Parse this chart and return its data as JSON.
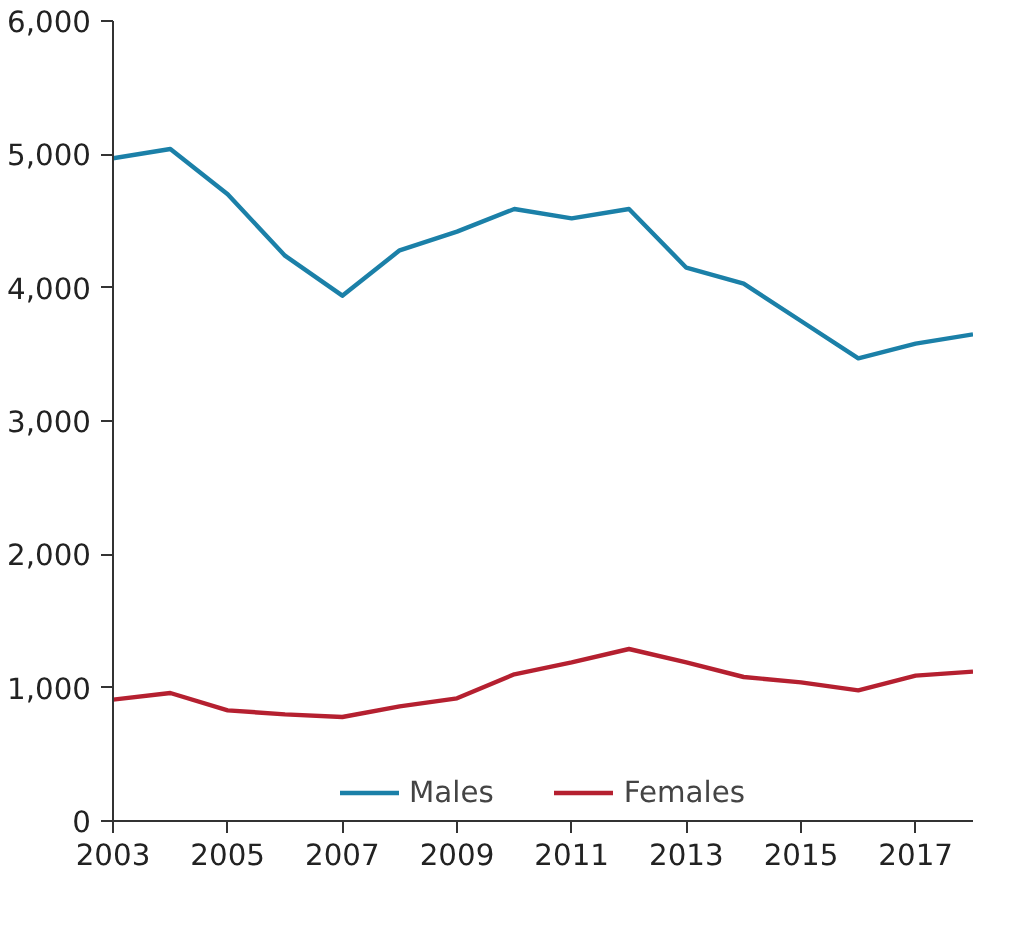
{
  "chart_data": {
    "type": "line",
    "x": [
      2003,
      2004,
      2005,
      2006,
      2007,
      2008,
      2009,
      2010,
      2011,
      2012,
      2013,
      2014,
      2015,
      2016,
      2017,
      2018
    ],
    "series": [
      {
        "name": "Males",
        "color": "#1b80a8",
        "values": [
          4970,
          5040,
          4700,
          4240,
          3940,
          4280,
          4420,
          4590,
          4520,
          4590,
          4150,
          4030,
          3750,
          3470,
          3580,
          3650
        ]
      },
      {
        "name": "Females",
        "color": "#b52030",
        "values": [
          910,
          960,
          830,
          800,
          780,
          860,
          920,
          1100,
          1190,
          1290,
          1190,
          1080,
          1040,
          980,
          1090,
          1120
        ]
      }
    ],
    "xlim": [
      2003,
      2018
    ],
    "xticks": [
      2003,
      2005,
      2007,
      2009,
      2011,
      2013,
      2015,
      2017
    ],
    "ylim": [
      0,
      6000
    ],
    "yticks": [
      {
        "value": 0,
        "label": "0"
      },
      {
        "value": 1000,
        "label": "1,000"
      },
      {
        "value": 2000,
        "label": "2,000"
      },
      {
        "value": 3000,
        "label": "3,000"
      },
      {
        "value": 4000,
        "label": "4,000"
      },
      {
        "value": 5000,
        "label": "5,000"
      },
      {
        "value": 6000,
        "label": "6,000"
      }
    ],
    "grid": false,
    "legend": "bottom",
    "marker": "none",
    "line_style": "solid"
  }
}
